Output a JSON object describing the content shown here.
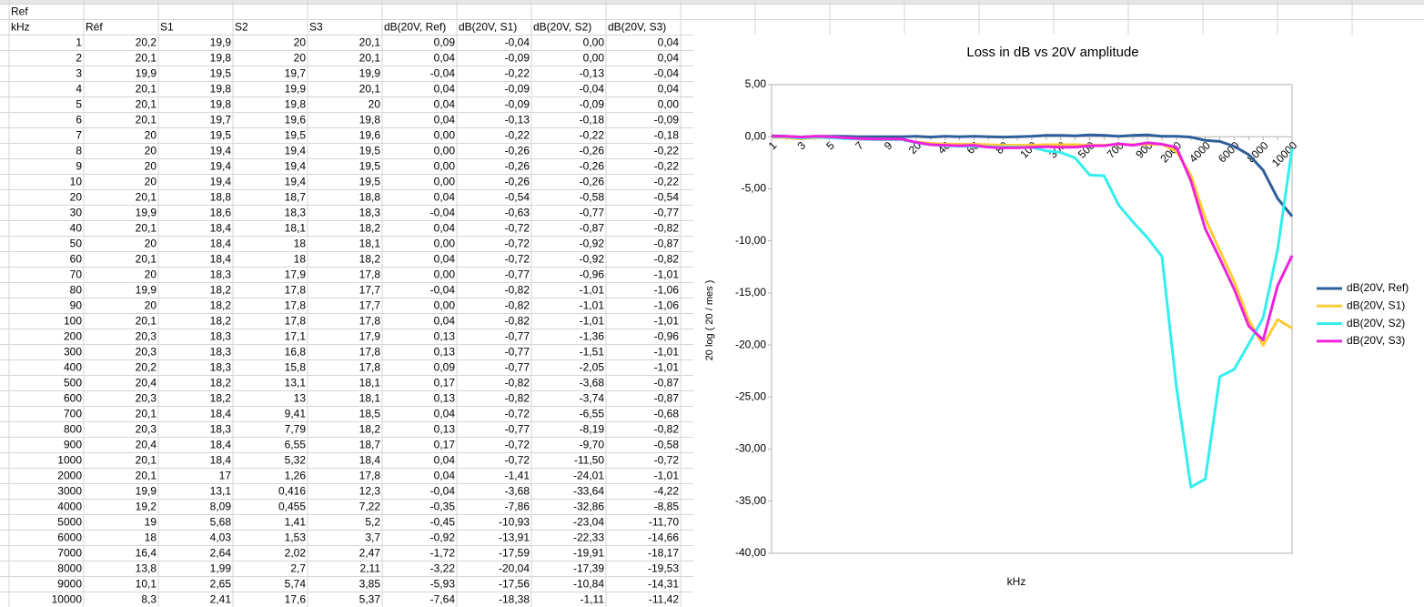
{
  "sheet": {
    "rows": [
      [
        "Ref"
      ],
      [
        "kHz",
        "Réf",
        "S1",
        "S2",
        "S3",
        "dB(20V, Ref)",
        "dB(20V, S1)",
        "dB(20V, S2)",
        "dB(20V, S3)"
      ],
      [
        "1",
        "20,2",
        "19,9",
        "20",
        "20,1",
        "0,09",
        "-0,04",
        "0,00",
        "0,04"
      ],
      [
        "2",
        "20,1",
        "19,8",
        "20",
        "20,1",
        "0,04",
        "-0,09",
        "0,00",
        "0,04"
      ],
      [
        "3",
        "19,9",
        "19,5",
        "19,7",
        "19,9",
        "-0,04",
        "-0,22",
        "-0,13",
        "-0,04"
      ],
      [
        "4",
        "20,1",
        "19,8",
        "19,9",
        "20,1",
        "0,04",
        "-0,09",
        "-0,04",
        "0,04"
      ],
      [
        "5",
        "20,1",
        "19,8",
        "19,8",
        "20",
        "0,04",
        "-0,09",
        "-0,09",
        "0,00"
      ],
      [
        "6",
        "20,1",
        "19,7",
        "19,6",
        "19,8",
        "0,04",
        "-0,13",
        "-0,18",
        "-0,09"
      ],
      [
        "7",
        "20",
        "19,5",
        "19,5",
        "19,6",
        "0,00",
        "-0,22",
        "-0,22",
        "-0,18"
      ],
      [
        "8",
        "20",
        "19,4",
        "19,4",
        "19,5",
        "0,00",
        "-0,26",
        "-0,26",
        "-0,22"
      ],
      [
        "9",
        "20",
        "19,4",
        "19,4",
        "19,5",
        "0,00",
        "-0,26",
        "-0,26",
        "-0,22"
      ],
      [
        "10",
        "20",
        "19,4",
        "19,4",
        "19,5",
        "0,00",
        "-0,26",
        "-0,26",
        "-0,22"
      ],
      [
        "20",
        "20,1",
        "18,8",
        "18,7",
        "18,8",
        "0,04",
        "-0,54",
        "-0,58",
        "-0,54"
      ],
      [
        "30",
        "19,9",
        "18,6",
        "18,3",
        "18,3",
        "-0,04",
        "-0,63",
        "-0,77",
        "-0,77"
      ],
      [
        "40",
        "20,1",
        "18,4",
        "18,1",
        "18,2",
        "0,04",
        "-0,72",
        "-0,87",
        "-0,82"
      ],
      [
        "50",
        "20",
        "18,4",
        "18",
        "18,1",
        "0,00",
        "-0,72",
        "-0,92",
        "-0,87"
      ],
      [
        "60",
        "20,1",
        "18,4",
        "18",
        "18,2",
        "0,04",
        "-0,72",
        "-0,92",
        "-0,82"
      ],
      [
        "70",
        "20",
        "18,3",
        "17,9",
        "17,8",
        "0,00",
        "-0,77",
        "-0,96",
        "-1,01"
      ],
      [
        "80",
        "19,9",
        "18,2",
        "17,8",
        "17,7",
        "-0,04",
        "-0,82",
        "-1,01",
        "-1,06"
      ],
      [
        "90",
        "20",
        "18,2",
        "17,8",
        "17,7",
        "0,00",
        "-0,82",
        "-1,01",
        "-1,06"
      ],
      [
        "100",
        "20,1",
        "18,2",
        "17,8",
        "17,8",
        "0,04",
        "-0,82",
        "-1,01",
        "-1,01"
      ],
      [
        "200",
        "20,3",
        "18,3",
        "17,1",
        "17,9",
        "0,13",
        "-0,77",
        "-1,36",
        "-0,96"
      ],
      [
        "300",
        "20,3",
        "18,3",
        "16,8",
        "17,8",
        "0,13",
        "-0,77",
        "-1,51",
        "-1,01"
      ],
      [
        "400",
        "20,2",
        "18,3",
        "15,8",
        "17,8",
        "0,09",
        "-0,77",
        "-2,05",
        "-1,01"
      ],
      [
        "500",
        "20,4",
        "18,2",
        "13,1",
        "18,1",
        "0,17",
        "-0,82",
        "-3,68",
        "-0,87"
      ],
      [
        "600",
        "20,3",
        "18,2",
        "13",
        "18,1",
        "0,13",
        "-0,82",
        "-3,74",
        "-0,87"
      ],
      [
        "700",
        "20,1",
        "18,4",
        "9,41",
        "18,5",
        "0,04",
        "-0,72",
        "-6,55",
        "-0,68"
      ],
      [
        "800",
        "20,3",
        "18,3",
        "7,79",
        "18,2",
        "0,13",
        "-0,77",
        "-8,19",
        "-0,82"
      ],
      [
        "900",
        "20,4",
        "18,4",
        "6,55",
        "18,7",
        "0,17",
        "-0,72",
        "-9,70",
        "-0,58"
      ],
      [
        "1000",
        "20,1",
        "18,4",
        "5,32",
        "18,4",
        "0,04",
        "-0,72",
        "-11,50",
        "-0,72"
      ],
      [
        "2000",
        "20,1",
        "17",
        "1,26",
        "17,8",
        "0,04",
        "-1,41",
        "-24,01",
        "-1,01"
      ],
      [
        "3000",
        "19,9",
        "13,1",
        "0,416",
        "12,3",
        "-0,04",
        "-3,68",
        "-33,64",
        "-4,22"
      ],
      [
        "4000",
        "19,2",
        "8,09",
        "0,455",
        "7,22",
        "-0,35",
        "-7,86",
        "-32,86",
        "-8,85"
      ],
      [
        "5000",
        "19",
        "5,68",
        "1,41",
        "5,2",
        "-0,45",
        "-10,93",
        "-23,04",
        "-11,70"
      ],
      [
        "6000",
        "18",
        "4,03",
        "1,53",
        "3,7",
        "-0,92",
        "-13,91",
        "-22,33",
        "-14,66"
      ],
      [
        "7000",
        "16,4",
        "2,64",
        "2,02",
        "2,47",
        "-1,72",
        "-17,59",
        "-19,91",
        "-18,17"
      ],
      [
        "8000",
        "13,8",
        "1,99",
        "2,7",
        "2,11",
        "-3,22",
        "-20,04",
        "-17,39",
        "-19,53"
      ],
      [
        "9000",
        "10,1",
        "2,65",
        "5,74",
        "3,85",
        "-5,93",
        "-17,56",
        "-10,84",
        "-14,31"
      ],
      [
        "10000",
        "8,3",
        "2,41",
        "17,6",
        "5,37",
        "-7,64",
        "-18,38",
        "-1,11",
        "-11,42"
      ]
    ]
  },
  "chart_data": {
    "type": "line",
    "title": "Loss in dB vs 20V amplitude",
    "xlabel": "kHz",
    "ylabel": "20 log ( 20 / mes )",
    "categories": [
      "1",
      null,
      "3",
      null,
      "5",
      null,
      "7",
      null,
      "9",
      null,
      "20",
      null,
      "40",
      null,
      "60",
      null,
      "80",
      null,
      "100",
      null,
      "300",
      null,
      "500",
      null,
      "700",
      null,
      "900",
      null,
      "2000",
      null,
      "4000",
      null,
      "6000",
      null,
      "8000",
      null,
      "10000"
    ],
    "ylim": [
      -40,
      5
    ],
    "yticks": [
      {
        "value": 5,
        "label": "5,00"
      },
      {
        "value": 0,
        "label": "0,00"
      },
      {
        "value": -5,
        "label": "-5,00"
      },
      {
        "value": -10,
        "label": "-10,00"
      },
      {
        "value": -15,
        "label": "-15,00"
      },
      {
        "value": -20,
        "label": "-20,00"
      },
      {
        "value": -25,
        "label": "-25,00"
      },
      {
        "value": -30,
        "label": "-30,00"
      },
      {
        "value": -35,
        "label": "-35,00"
      },
      {
        "value": -40,
        "label": "-40,00"
      }
    ],
    "legend": "right",
    "series": [
      {
        "name": "dB(20V, Ref)",
        "color": "#2f5f98",
        "values": [
          0.09,
          0.04,
          -0.04,
          0.04,
          0.04,
          0.04,
          0,
          0,
          0,
          0,
          0.04,
          -0.04,
          0.04,
          0,
          0.04,
          0,
          -0.04,
          0,
          0.04,
          0.13,
          0.13,
          0.09,
          0.17,
          0.13,
          0.04,
          0.13,
          0.17,
          0.04,
          0.04,
          -0.04,
          -0.35,
          -0.45,
          -0.92,
          -1.72,
          -3.22,
          -5.93,
          -7.64
        ]
      },
      {
        "name": "dB(20V, S1)",
        "color": "#ffcc33",
        "values": [
          -0.04,
          -0.09,
          -0.22,
          -0.09,
          -0.09,
          -0.13,
          -0.22,
          -0.26,
          -0.26,
          -0.26,
          -0.54,
          -0.63,
          -0.72,
          -0.72,
          -0.72,
          -0.77,
          -0.82,
          -0.82,
          -0.82,
          -0.77,
          -0.77,
          -0.77,
          -0.82,
          -0.82,
          -0.72,
          -0.77,
          -0.72,
          -0.72,
          -1.41,
          -3.68,
          -7.86,
          -10.93,
          -13.91,
          -17.59,
          -20.04,
          -17.56,
          -18.38
        ]
      },
      {
        "name": "dB(20V, S2)",
        "color": "#33eeee",
        "values": [
          0,
          0,
          -0.13,
          -0.04,
          -0.09,
          -0.18,
          -0.22,
          -0.26,
          -0.26,
          -0.26,
          -0.58,
          -0.77,
          -0.87,
          -0.92,
          -0.92,
          -0.96,
          -1.01,
          -1.01,
          -1.01,
          -1.36,
          -1.51,
          -2.05,
          -3.68,
          -3.74,
          -6.55,
          -8.19,
          -9.7,
          -11.5,
          -24.01,
          -33.64,
          -32.86,
          -23.04,
          -22.33,
          -19.91,
          -17.39,
          -10.84,
          -1.11
        ]
      },
      {
        "name": "dB(20V, S3)",
        "color": "#ee22dd",
        "values": [
          0.04,
          0.04,
          -0.04,
          0.04,
          0,
          -0.09,
          -0.18,
          -0.22,
          -0.22,
          -0.22,
          -0.54,
          -0.77,
          -0.82,
          -0.87,
          -0.82,
          -1.01,
          -1.06,
          -1.06,
          -1.01,
          -0.96,
          -1.01,
          -1.01,
          -0.87,
          -0.87,
          -0.68,
          -0.82,
          -0.58,
          -0.72,
          -1.01,
          -4.22,
          -8.85,
          -11.7,
          -14.66,
          -18.17,
          -19.53,
          -14.31,
          -11.42
        ]
      }
    ]
  }
}
